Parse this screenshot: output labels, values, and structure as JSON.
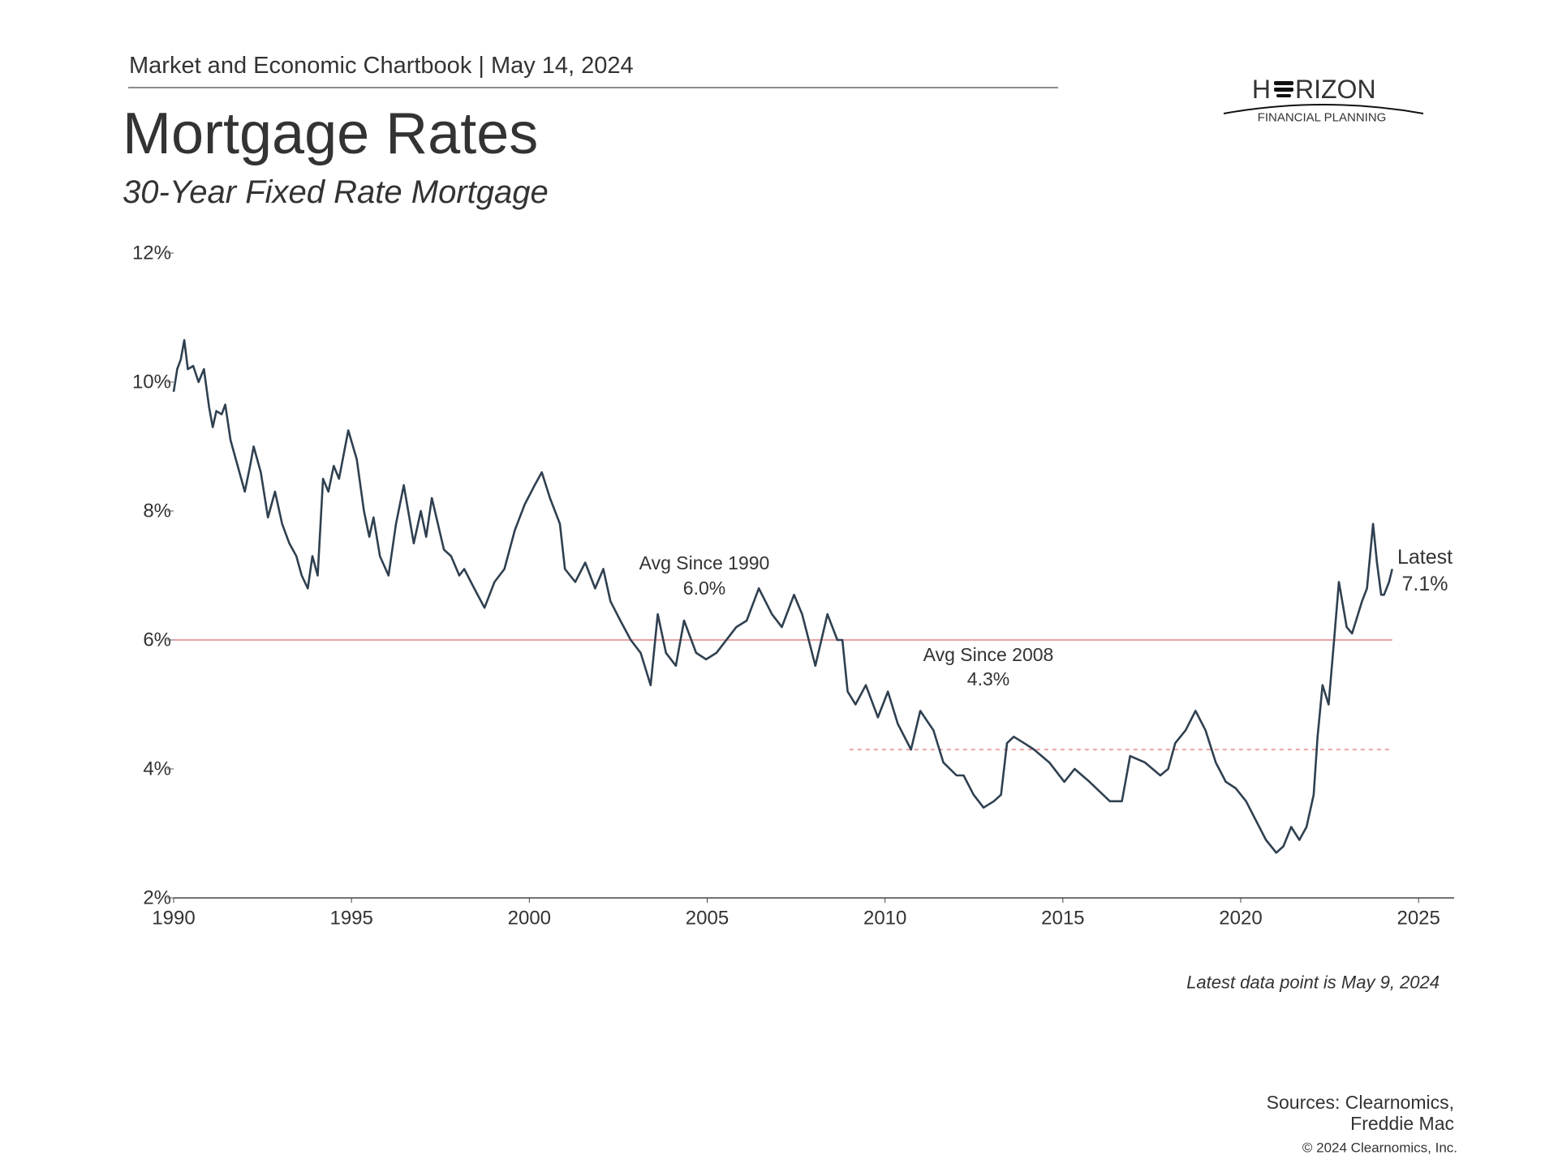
{
  "header": {
    "chartbook": "Market and Economic Chartbook | May 14, 2024"
  },
  "logo": {
    "left": "H",
    "right": "RIZON",
    "tagline": "FINANCIAL PLANNING"
  },
  "chart_data": {
    "type": "line",
    "title": "Mortgage Rates",
    "subtitle": "30-Year Fixed Rate Mortgage",
    "x": [
      1990.0,
      1990.1,
      1990.2,
      1990.3,
      1990.4,
      1990.55,
      1990.7,
      1990.85,
      1991.0,
      1991.1,
      1991.2,
      1991.35,
      1991.45,
      1991.6,
      1991.8,
      1992.0,
      1992.15,
      1992.25,
      1992.45,
      1992.65,
      1992.85,
      1993.05,
      1993.25,
      1993.45,
      1993.6,
      1993.77,
      1993.9,
      1994.05,
      1994.2,
      1994.35,
      1994.5,
      1994.65,
      1994.91,
      1995.15,
      1995.35,
      1995.5,
      1995.62,
      1995.8,
      1996.04,
      1996.25,
      1996.47,
      1996.75,
      1996.95,
      1997.1,
      1997.26,
      1997.6,
      1997.8,
      1998.03,
      1998.17,
      1998.45,
      1998.74,
      1999.02,
      1999.3,
      1999.59,
      1999.87,
      2000.15,
      2000.35,
      2000.58,
      2000.86,
      2001.0,
      2001.29,
      2001.57,
      2001.85,
      2002.08,
      2002.28,
      2002.56,
      2002.85,
      2003.13,
      2003.41,
      2003.61,
      2003.84,
      2004.12,
      2004.35,
      2004.69,
      2004.97,
      2005.26,
      2005.82,
      2006.11,
      2006.45,
      2006.82,
      2007.1,
      2007.44,
      2007.67,
      2008.04,
      2008.38,
      2008.66,
      2008.8,
      2008.95,
      2009.17,
      2009.46,
      2009.8,
      2010.08,
      2010.36,
      2010.73,
      2010.99,
      2011.36,
      2011.64,
      2012.01,
      2012.21,
      2012.49,
      2012.77,
      2013.06,
      2013.26,
      2013.43,
      2013.62,
      2013.91,
      2014.19,
      2014.62,
      2015.04,
      2015.33,
      2015.75,
      2016.32,
      2016.66,
      2016.89,
      2017.31,
      2017.74,
      2017.96,
      2018.16,
      2018.45,
      2018.73,
      2019.01,
      2019.3,
      2019.58,
      2019.86,
      2020.15,
      2020.43,
      2020.71,
      2021.0,
      2021.2,
      2021.42,
      2021.65,
      2021.85,
      2022.05,
      2022.16,
      2022.3,
      2022.47,
      2022.61,
      2022.76,
      2022.98,
      2023.13,
      2023.41,
      2023.55,
      2023.72,
      2023.83,
      2023.95,
      2024.03,
      2024.17,
      2024.26
    ],
    "series": [
      {
        "name": "30-Year Fixed Rate Mortgage",
        "color": "#2f4050",
        "values": [
          9.85,
          10.2,
          10.35,
          10.65,
          10.2,
          10.25,
          10.0,
          10.2,
          9.6,
          9.3,
          9.55,
          9.5,
          9.65,
          9.1,
          8.7,
          8.3,
          8.7,
          9.0,
          8.6,
          7.9,
          8.3,
          7.8,
          7.5,
          7.3,
          7.0,
          6.8,
          7.3,
          7.0,
          8.5,
          8.3,
          8.7,
          8.5,
          9.25,
          8.8,
          8.0,
          7.6,
          7.9,
          7.3,
          7.0,
          7.8,
          8.4,
          7.5,
          8.0,
          7.6,
          8.2,
          7.4,
          7.3,
          7.0,
          7.1,
          6.8,
          6.5,
          6.9,
          7.1,
          7.7,
          8.1,
          8.4,
          8.6,
          8.2,
          7.8,
          7.1,
          6.9,
          7.2,
          6.8,
          7.1,
          6.6,
          6.3,
          6.0,
          5.8,
          5.3,
          6.4,
          5.8,
          5.6,
          6.3,
          5.8,
          5.7,
          5.8,
          6.2,
          6.3,
          6.8,
          6.4,
          6.2,
          6.7,
          6.4,
          5.6,
          6.4,
          6.0,
          6.0,
          5.2,
          5.0,
          5.3,
          4.8,
          5.2,
          4.7,
          4.3,
          4.9,
          4.6,
          4.1,
          3.9,
          3.9,
          3.6,
          3.4,
          3.5,
          3.6,
          4.4,
          4.5,
          4.4,
          4.3,
          4.1,
          3.8,
          4.0,
          3.8,
          3.5,
          3.5,
          4.2,
          4.1,
          3.9,
          4.0,
          4.4,
          4.6,
          4.9,
          4.6,
          4.1,
          3.8,
          3.7,
          3.5,
          3.2,
          2.9,
          2.7,
          2.8,
          3.1,
          2.9,
          3.1,
          3.6,
          4.5,
          5.3,
          5.0,
          5.9,
          6.9,
          6.2,
          6.1,
          6.6,
          6.8,
          7.8,
          7.2,
          6.7,
          6.7,
          6.9,
          7.1
        ]
      }
    ],
    "xlim": [
      1990,
      2026
    ],
    "xticks": [
      1990,
      1995,
      2000,
      2005,
      2010,
      2015,
      2020,
      2025
    ],
    "ylim": [
      2,
      12
    ],
    "yticks": [
      {
        "value": 2,
        "label": "2%"
      },
      {
        "value": 4,
        "label": "4%"
      },
      {
        "value": 6,
        "label": "6%"
      },
      {
        "value": 8,
        "label": "8%"
      },
      {
        "value": 10,
        "label": "10%"
      },
      {
        "value": 12,
        "label": "12%"
      }
    ],
    "reference_lines": [
      {
        "name": "Avg Since 1990",
        "value": 6.0,
        "label": "6.0%",
        "start": 1990,
        "style": "solid",
        "color": "#e8a3a3"
      },
      {
        "name": "Avg Since 2008",
        "value": 4.3,
        "label": "4.3%",
        "start": 2009,
        "style": "dashed",
        "color": "#e8a3a3"
      }
    ],
    "latest": {
      "name": "Latest",
      "value": 7.1,
      "label": "7.1%"
    },
    "note": "Latest data point is May 9, 2024",
    "sources": [
      "Sources: Clearnomics,",
      "Freddie Mac"
    ],
    "copyright": "© 2024 Clearnomics, Inc."
  }
}
